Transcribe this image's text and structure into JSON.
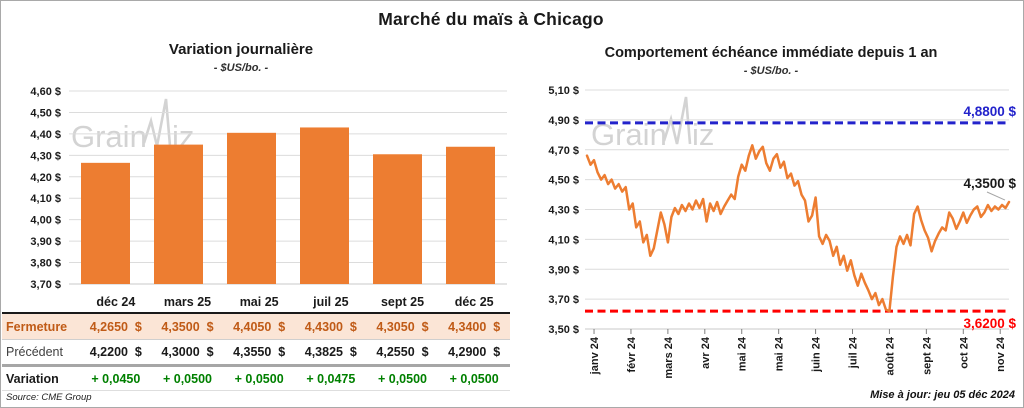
{
  "page": {
    "title": "Marché du maïs à Chicago",
    "source": "Source: CME Group",
    "updated": "Mise à jour: jeu 05 déc 2024",
    "watermark": {
      "part1": "Grain",
      "part2": "iz"
    }
  },
  "colors": {
    "orange": "#ED7D31",
    "blue": "#2323CB",
    "red": "#FF0000",
    "green": "#008000",
    "fermeture_bg": "#FBE5D6",
    "fermeture_text": "#C05B17",
    "grid": "#dcdcdc",
    "axis": "#c8c8c8",
    "tick": "#7f7f7f",
    "leader": "#a6a6a6"
  },
  "chart_data": [
    {
      "type": "bar",
      "title": "Variation  journalière",
      "subtitle": "- $US/bo. -",
      "categories": [
        "déc 24",
        "mars 25",
        "mai 25",
        "juil 25",
        "sept 25",
        "déc 25"
      ],
      "values": [
        4.265,
        4.35,
        4.405,
        4.43,
        4.305,
        4.34
      ],
      "ylim": [
        3.7,
        4.6
      ],
      "ytick_step": 0.1,
      "ytick_labels": [
        "4,60 $",
        "4,50 $",
        "4,40 $",
        "4,30 $",
        "4,20 $",
        "4,10 $",
        "4,00 $",
        "3,90 $",
        "3,80 $",
        "3,70 $"
      ],
      "bar_color": "#ED7D31",
      "grid": true,
      "legend": "none"
    },
    {
      "type": "line",
      "title": "Comportement  échéance  immédiate  depuis 1 an",
      "subtitle": "- $US/bo. -",
      "x_labels": [
        "janv 24",
        "févr 24",
        "mars 24",
        "avr 24",
        "mai 24",
        "mai 24",
        "juin 24",
        "juil 24",
        "août 24",
        "sept 24",
        "oct 24",
        "nov 24"
      ],
      "ylim": [
        3.5,
        5.1
      ],
      "ytick_step": 0.2,
      "ytick_labels": [
        "5,10 $",
        "4,90 $",
        "4,70 $",
        "4,50 $",
        "4,30 $",
        "4,10 $",
        "3,90 $",
        "3,70 $",
        "3,50 $"
      ],
      "line_color": "#ED7D31",
      "grid": true,
      "last_value": 4.35,
      "last_label": "4,3500 $",
      "reference_lines": [
        {
          "name": "high",
          "value": 4.88,
          "label": "4,8800 $",
          "color": "#2323CB",
          "style": "dashed",
          "label_position": "above"
        },
        {
          "name": "low",
          "value": 3.62,
          "label": "3,6200 $",
          "color": "#FF0000",
          "style": "dashed",
          "label_position": "below"
        }
      ],
      "values": [
        4.66,
        4.6,
        4.63,
        4.55,
        4.5,
        4.53,
        4.47,
        4.5,
        4.44,
        4.47,
        4.42,
        4.45,
        4.3,
        4.34,
        4.18,
        4.22,
        4.08,
        4.13,
        3.99,
        4.04,
        4.16,
        4.28,
        4.2,
        4.08,
        4.25,
        4.31,
        4.27,
        4.33,
        4.29,
        4.34,
        4.3,
        4.36,
        4.31,
        4.37,
        4.22,
        4.34,
        4.29,
        4.35,
        4.27,
        4.32,
        4.36,
        4.4,
        4.37,
        4.52,
        4.6,
        4.56,
        4.66,
        4.73,
        4.64,
        4.69,
        4.72,
        4.61,
        4.56,
        4.64,
        4.67,
        4.58,
        4.62,
        4.51,
        4.54,
        4.46,
        4.49,
        4.4,
        4.36,
        4.22,
        4.26,
        4.38,
        4.12,
        4.07,
        4.13,
        4.09,
        3.99,
        4.05,
        3.93,
        3.99,
        3.89,
        3.96,
        3.86,
        3.79,
        3.87,
        3.81,
        3.76,
        3.7,
        3.74,
        3.66,
        3.7,
        3.63,
        3.62,
        3.85,
        4.05,
        4.12,
        4.07,
        4.13,
        4.06,
        4.27,
        4.32,
        4.23,
        4.16,
        4.11,
        4.02,
        4.09,
        4.14,
        4.18,
        4.16,
        4.28,
        4.24,
        4.17,
        4.22,
        4.28,
        4.21,
        4.26,
        4.3,
        4.32,
        4.25,
        4.28,
        4.33,
        4.29,
        4.32,
        4.3,
        4.33,
        4.31,
        4.35
      ]
    }
  ],
  "table": {
    "rows": [
      {
        "name": "fermeture",
        "label": "Fermeture",
        "cells": [
          "4,2650  $",
          "4,3500  $",
          "4,4050  $",
          "4,4300  $",
          "4,3050  $",
          "4,3400  $"
        ]
      },
      {
        "name": "precedent",
        "label": "Précédent",
        "cells": [
          "4,2200  $",
          "4,3000  $",
          "4,3550  $",
          "4,3825  $",
          "4,2550  $",
          "4,2900  $"
        ]
      },
      {
        "name": "variation",
        "label": "Variation",
        "cells": [
          "+ 0,0450",
          "+ 0,0500",
          "+ 0,0500",
          "+ 0,0475",
          "+ 0,0500",
          "+ 0,0500"
        ]
      }
    ]
  }
}
